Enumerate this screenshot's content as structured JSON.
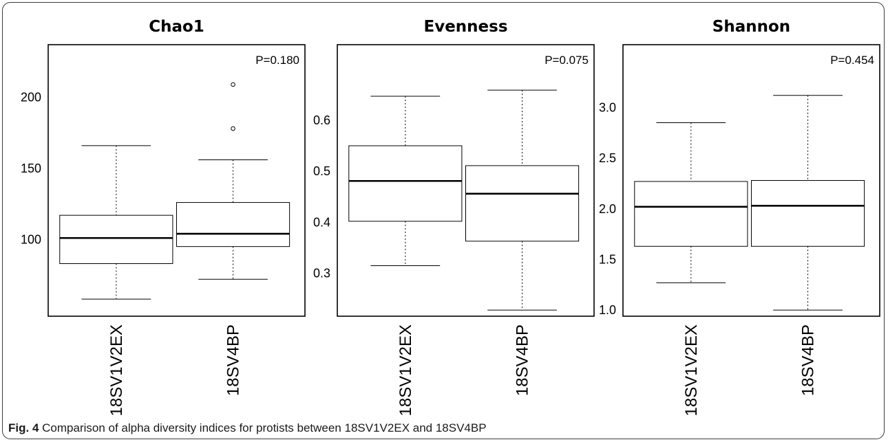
{
  "chart_data": [
    {
      "type": "box",
      "title": "Chao1",
      "annotation": "P=0.180",
      "categories": [
        "18SV1V2EX",
        "18SV4BP"
      ],
      "y_ticks": [
        "100",
        "150",
        "200"
      ],
      "y_tick_values": [
        100,
        150,
        200
      ],
      "ylim": [
        46,
        237
      ],
      "boxes": [
        {
          "category": "18SV1V2EX",
          "whisker_low": 58,
          "q1": 83,
          "median": 101,
          "q3": 117,
          "whisker_high": 166,
          "outliers": []
        },
        {
          "category": "18SV4BP",
          "whisker_low": 72,
          "q1": 95,
          "median": 104,
          "q3": 126,
          "whisker_high": 156,
          "outliers": [
            178,
            209
          ]
        }
      ]
    },
    {
      "type": "box",
      "title": "Evenness",
      "annotation": "P=0.075",
      "categories": [
        "18SV1V2EX",
        "18SV4BP"
      ],
      "y_ticks": [
        "0.3",
        "0.4",
        "0.5",
        "0.6"
      ],
      "y_tick_values": [
        0.3,
        0.4,
        0.5,
        0.6
      ],
      "ylim": [
        0.216,
        0.748
      ],
      "boxes": [
        {
          "category": "18SV1V2EX",
          "whisker_low": 0.315,
          "q1": 0.402,
          "median": 0.481,
          "q3": 0.55,
          "whisker_high": 0.647,
          "outliers": []
        },
        {
          "category": "18SV4BP",
          "whisker_low": 0.228,
          "q1": 0.363,
          "median": 0.456,
          "q3": 0.511,
          "whisker_high": 0.659,
          "outliers": []
        }
      ]
    },
    {
      "type": "box",
      "title": "Shannon",
      "annotation": "P=0.454",
      "categories": [
        "18SV1V2EX",
        "18SV4BP"
      ],
      "y_ticks": [
        "1.0",
        "1.5",
        "2.0",
        "2.5",
        "3.0"
      ],
      "y_tick_values": [
        1.0,
        1.5,
        2.0,
        2.5,
        3.0
      ],
      "ylim": [
        0.94,
        3.62
      ],
      "boxes": [
        {
          "category": "18SV1V2EX",
          "whisker_low": 1.27,
          "q1": 1.63,
          "median": 2.02,
          "q3": 2.27,
          "whisker_high": 2.85,
          "outliers": []
        },
        {
          "category": "18SV4BP",
          "whisker_low": 1.0,
          "q1": 1.63,
          "median": 2.03,
          "q3": 2.28,
          "whisker_high": 3.12,
          "outliers": []
        }
      ]
    }
  ],
  "caption": {
    "label": "Fig. 4",
    "text": "Comparison of alpha diversity indices for protists between 18SV1V2EX and 18SV4BP"
  }
}
